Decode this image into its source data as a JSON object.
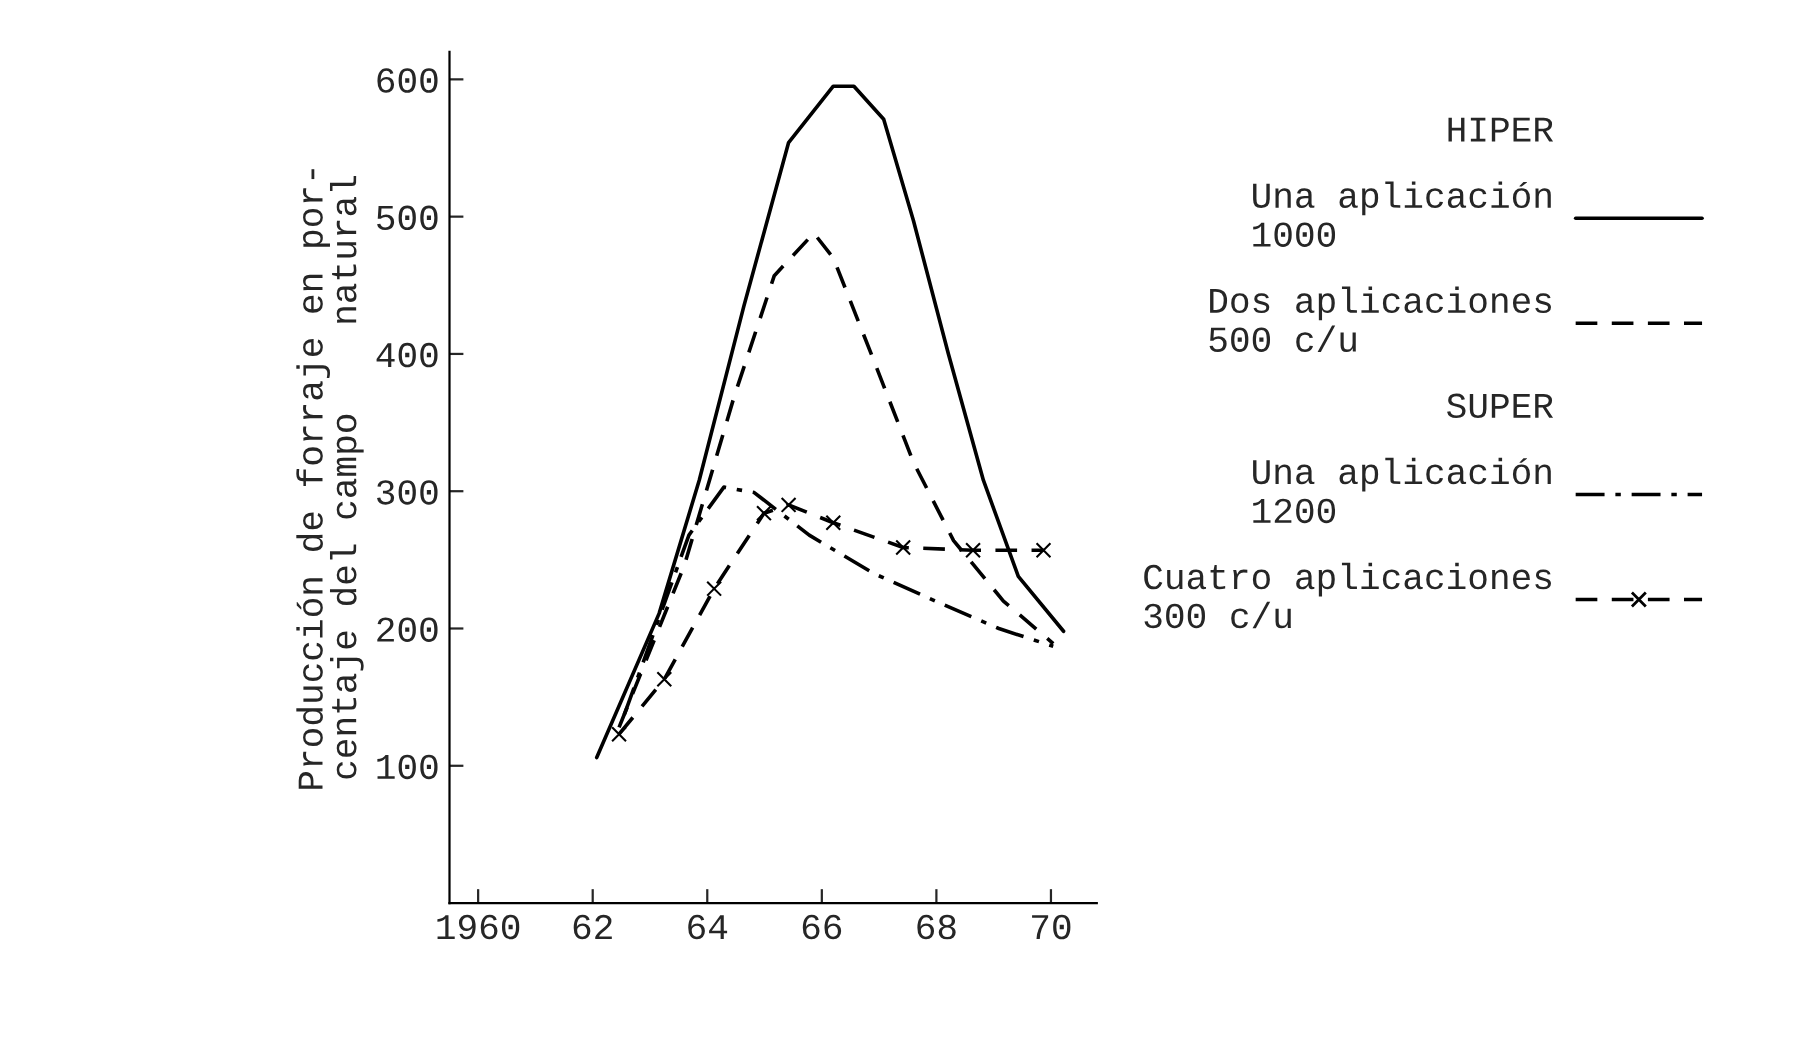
{
  "chart_data": {
    "type": "line",
    "ylabel": "Producción de forraje en por-\ncentaje del campo    natural",
    "xlim": [
      1959.5,
      1970.8
    ],
    "ylim": [
      0,
      620
    ],
    "xticks": [
      {
        "value": 1960,
        "label": "1960"
      },
      {
        "value": 1962,
        "label": "62"
      },
      {
        "value": 1964,
        "label": "64"
      },
      {
        "value": 1966,
        "label": "66"
      },
      {
        "value": 1968,
        "label": "68"
      },
      {
        "value": 1970,
        "label": "70"
      }
    ],
    "yticks": [
      100,
      200,
      300,
      400,
      500,
      600
    ],
    "grid": false,
    "legend": "right",
    "annotations": [
      "HIPER",
      "SUPER"
    ],
    "series": [
      {
        "name": "Una aplicación\n1000",
        "color": "#000000",
        "line_style": "solid",
        "x": [
          1962.07,
          1963.16,
          1963.86,
          1964.64,
          1965.42,
          1966.2,
          1966.56,
          1967.08,
          1967.6,
          1968.21,
          1968.82,
          1969.43,
          1970.22
        ],
        "values": [
          106,
          211,
          308,
          435,
          554,
          595,
          595,
          571,
          497,
          400,
          308,
          238,
          198
        ]
      },
      {
        "name": "Dos aplicaciones\n500 c/u",
        "color": "#000000",
        "line_style": "dashed",
        "x": [
          1962.46,
          1963.6,
          1964.47,
          1965.17,
          1965.86,
          1966.2,
          1966.9,
          1967.6,
          1968.3,
          1969.17,
          1970.04
        ],
        "values": [
          128,
          246,
          369,
          457,
          488,
          470,
          396,
          321,
          264,
          220,
          189
        ]
      },
      {
        "name": "Una aplicación\n1200",
        "color": "#000000",
        "line_style": "dashdot",
        "x": [
          1962.55,
          1963.68,
          1964.29,
          1964.82,
          1965.78,
          1966.91,
          1968.09,
          1969.09,
          1970.04
        ],
        "values": [
          137,
          268,
          303,
          299,
          268,
          240,
          218,
          200,
          187
        ]
      },
      {
        "name": "Cuatro aplicaciones\n300 c/u",
        "color": "#000000",
        "line_style": "dashed",
        "marker": "cross",
        "x": [
          1962.46,
          1963.25,
          1964.12,
          1964.99,
          1965.42,
          1966.2,
          1967.42,
          1968.64,
          1969.87
        ],
        "values": [
          123,
          163,
          229,
          284,
          290,
          277,
          259,
          257,
          257
        ]
      }
    ]
  }
}
